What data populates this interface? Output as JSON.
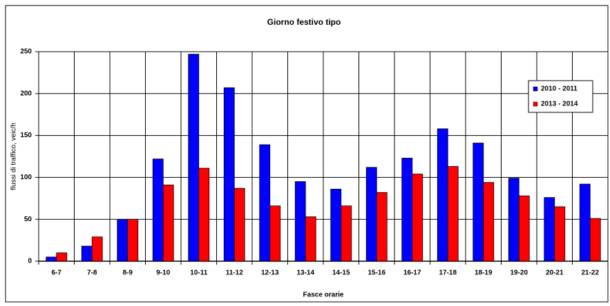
{
  "chart_data": {
    "type": "bar",
    "title": "Giorno festivo tipo",
    "x_label": "Fasce orarie",
    "y_label": "flussi di traffico, veic/h",
    "categories": [
      "6-7",
      "7-8",
      "8-9",
      "9-10",
      "10-11",
      "11-12",
      "12-13",
      "13-14",
      "14-15",
      "15-16",
      "16-17",
      "17-18",
      "18-19",
      "19-20",
      "20-21",
      "21-22"
    ],
    "series": [
      {
        "name": "2010 - 2011",
        "color": "#0000ff",
        "values": [
          5,
          18,
          50,
          122,
          247,
          207,
          139,
          95,
          86,
          112,
          123,
          158,
          141,
          99,
          76,
          92
        ]
      },
      {
        "name": "2013 - 2014",
        "color": "#ff0000",
        "values": [
          10,
          29,
          50,
          91,
          111,
          87,
          66,
          53,
          66,
          82,
          104,
          113,
          94,
          78,
          65,
          51
        ]
      }
    ],
    "ylim": [
      0,
      250
    ],
    "yticks": [
      0,
      50,
      100,
      150,
      200,
      250
    ],
    "grid": true,
    "legend": "upper right"
  }
}
